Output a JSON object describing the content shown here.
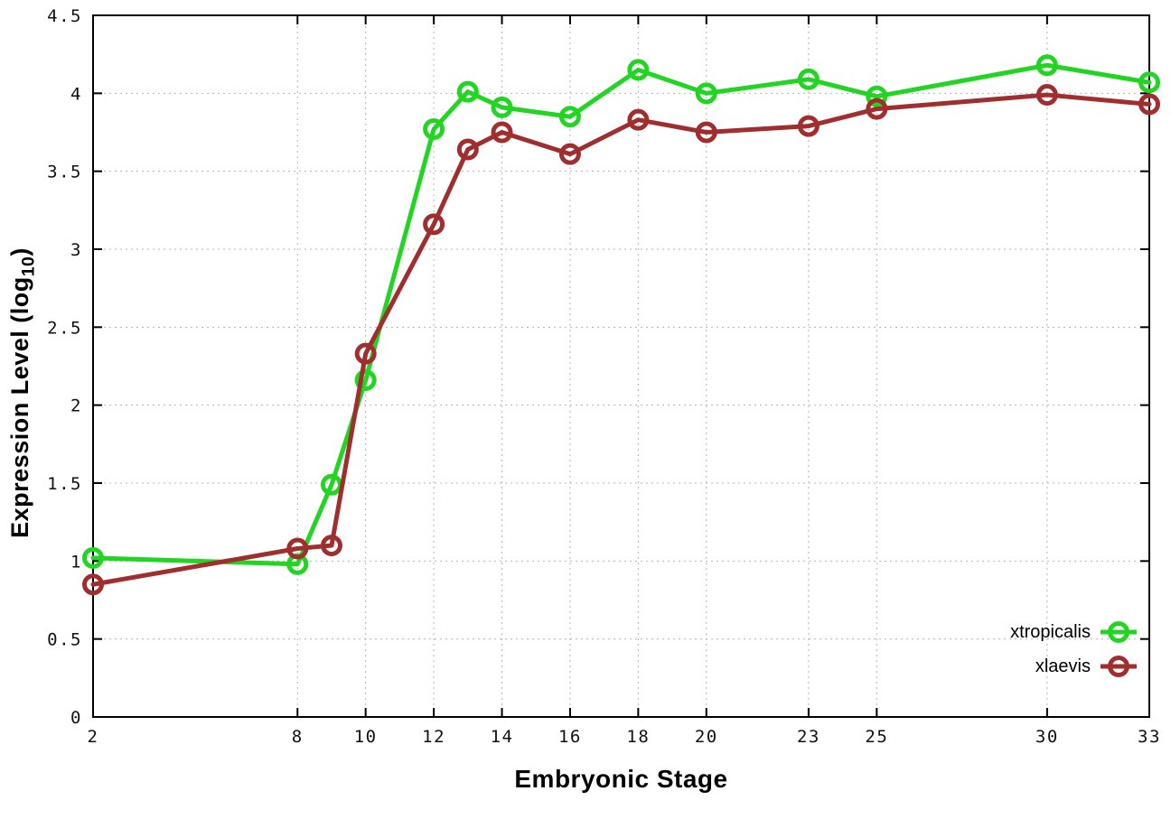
{
  "chart_data": {
    "type": "line",
    "title": "",
    "xlabel": "Embryonic Stage",
    "ylabel": "Expression Level (log10)",
    "ylabel_parts": {
      "main": "Expression Level (log",
      "sub": "10",
      "end": ")"
    },
    "x": [
      2,
      8,
      9,
      10,
      12,
      13,
      14,
      16,
      18,
      20,
      23,
      25,
      30,
      33
    ],
    "xtick_values": [
      2,
      8,
      10,
      12,
      14,
      16,
      18,
      20,
      23,
      25,
      30,
      33
    ],
    "ytick_values": [
      0,
      0.5,
      1,
      1.5,
      2,
      2.5,
      3,
      3.5,
      4,
      4.5
    ],
    "xlim": [
      2,
      33
    ],
    "ylim": [
      0,
      4.5
    ],
    "grid": true,
    "legend_position": "bottom-right",
    "series": [
      {
        "name": "xtropicalis",
        "color": "#23d523",
        "marker": "open-circle",
        "values": [
          1.02,
          0.98,
          1.49,
          2.16,
          3.77,
          4.01,
          3.91,
          3.85,
          4.15,
          4.0,
          4.09,
          3.98,
          4.18,
          4.07
        ]
      },
      {
        "name": "xlaevis",
        "color": "#a02e2e",
        "marker": "open-circle",
        "values": [
          0.85,
          1.08,
          1.1,
          2.33,
          3.16,
          3.64,
          3.75,
          3.61,
          3.83,
          3.75,
          3.79,
          3.9,
          3.99,
          3.93
        ]
      }
    ]
  },
  "colors": {
    "background": "#ffffff",
    "axis": "#000000",
    "grid": "#b5b5b5",
    "tick_text": "#111111"
  }
}
